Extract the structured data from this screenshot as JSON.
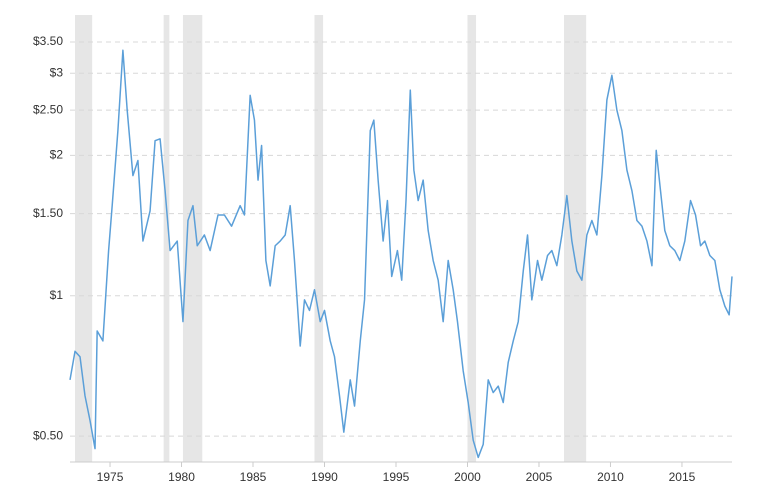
{
  "chart_data": {
    "type": "line",
    "y_scale": "log",
    "grid": true,
    "xlim": [
      1972.2,
      2018.5
    ],
    "xticks": [
      1975,
      1980,
      1985,
      1990,
      1995,
      2000,
      2005,
      2010,
      2015
    ],
    "ylim": [
      0.44,
      4
    ],
    "yticks": [
      {
        "value": 0.5,
        "label": "$0.50"
      },
      {
        "value": 1,
        "label": "$1"
      },
      {
        "value": 1.5,
        "label": "$1.50"
      },
      {
        "value": 2,
        "label": "$2"
      },
      {
        "value": 2.5,
        "label": "$2.50"
      },
      {
        "value": 3,
        "label": "$3"
      },
      {
        "value": 3.5,
        "label": "$3.50"
      }
    ],
    "shaded_ranges": [
      [
        1972.55,
        1973.75
      ],
      [
        1978.75,
        1979.15
      ],
      [
        1980.1,
        1981.45
      ],
      [
        1989.3,
        1989.9
      ],
      [
        2000.0,
        2000.6
      ],
      [
        2006.75,
        2008.3
      ]
    ],
    "shade_color": "#e6e6e6",
    "x": [
      1972.2,
      1972.55,
      1972.9,
      1973.25,
      1973.6,
      1973.95,
      1974.1,
      1974.5,
      1974.9,
      1975.15,
      1975.55,
      1975.9,
      1976.2,
      1976.6,
      1976.95,
      1977.3,
      1977.8,
      1978.15,
      1978.5,
      1978.85,
      1979.2,
      1979.7,
      1980.1,
      1980.45,
      1980.8,
      1981.1,
      1981.6,
      1982.0,
      1982.55,
      1983.0,
      1983.5,
      1984.1,
      1984.4,
      1984.8,
      1985.1,
      1985.35,
      1985.6,
      1985.9,
      1986.2,
      1986.55,
      1986.9,
      1987.25,
      1987.6,
      1987.9,
      1988.3,
      1988.6,
      1988.95,
      1989.3,
      1989.7,
      1990.0,
      1990.4,
      1990.7,
      1991.05,
      1991.35,
      1991.8,
      1992.1,
      1992.5,
      1992.8,
      1993.2,
      1993.45,
      1993.75,
      1994.1,
      1994.4,
      1994.7,
      1995.1,
      1995.4,
      1995.7,
      1996.0,
      1996.25,
      1996.55,
      1996.9,
      1997.25,
      1997.6,
      1997.95,
      1998.3,
      1998.65,
      1999.0,
      1999.3,
      1999.7,
      2000.05,
      2000.4,
      2000.75,
      2001.1,
      2001.45,
      2001.8,
      2002.15,
      2002.5,
      2002.85,
      2003.2,
      2003.55,
      2003.9,
      2004.2,
      2004.5,
      2004.9,
      2005.2,
      2005.6,
      2005.9,
      2006.25,
      2006.6,
      2006.95,
      2007.3,
      2007.65,
      2008.0,
      2008.35,
      2008.7,
      2009.05,
      2009.4,
      2009.75,
      2010.1,
      2010.45,
      2010.8,
      2011.15,
      2011.5,
      2011.85,
      2012.2,
      2012.55,
      2012.9,
      2013.2,
      2013.5,
      2013.8,
      2014.15,
      2014.5,
      2014.85,
      2015.2,
      2015.6,
      2015.95,
      2016.3,
      2016.6,
      2016.95,
      2017.3,
      2017.65,
      2018.0,
      2018.3,
      2018.5
    ],
    "series": [
      {
        "color": "#5b9fd8",
        "values": [
          0.66,
          0.76,
          0.74,
          0.61,
          0.54,
          0.47,
          0.84,
          0.8,
          1.25,
          1.56,
          2.26,
          3.36,
          2.5,
          1.81,
          1.95,
          1.31,
          1.52,
          2.15,
          2.17,
          1.68,
          1.25,
          1.31,
          0.88,
          1.45,
          1.56,
          1.28,
          1.35,
          1.25,
          1.49,
          1.49,
          1.41,
          1.56,
          1.49,
          2.69,
          2.38,
          1.77,
          2.1,
          1.19,
          1.05,
          1.28,
          1.31,
          1.35,
          1.56,
          1.19,
          0.78,
          0.98,
          0.93,
          1.03,
          0.88,
          0.93,
          0.8,
          0.74,
          0.61,
          0.51,
          0.66,
          0.58,
          0.8,
          0.98,
          2.26,
          2.38,
          1.77,
          1.31,
          1.6,
          1.1,
          1.25,
          1.08,
          1.6,
          2.76,
          1.86,
          1.6,
          1.77,
          1.38,
          1.19,
          1.08,
          0.88,
          1.19,
          1.03,
          0.88,
          0.69,
          0.59,
          0.49,
          0.45,
          0.48,
          0.66,
          0.62,
          0.64,
          0.59,
          0.72,
          0.8,
          0.88,
          1.13,
          1.35,
          0.98,
          1.19,
          1.08,
          1.22,
          1.25,
          1.16,
          1.35,
          1.64,
          1.31,
          1.13,
          1.08,
          1.35,
          1.45,
          1.35,
          1.81,
          2.63,
          2.97,
          2.5,
          2.26,
          1.86,
          1.68,
          1.45,
          1.41,
          1.31,
          1.16,
          2.05,
          1.68,
          1.38,
          1.28,
          1.25,
          1.19,
          1.31,
          1.6,
          1.49,
          1.28,
          1.31,
          1.22,
          1.19,
          1.03,
          0.95,
          0.91,
          1.1
        ]
      }
    ]
  }
}
